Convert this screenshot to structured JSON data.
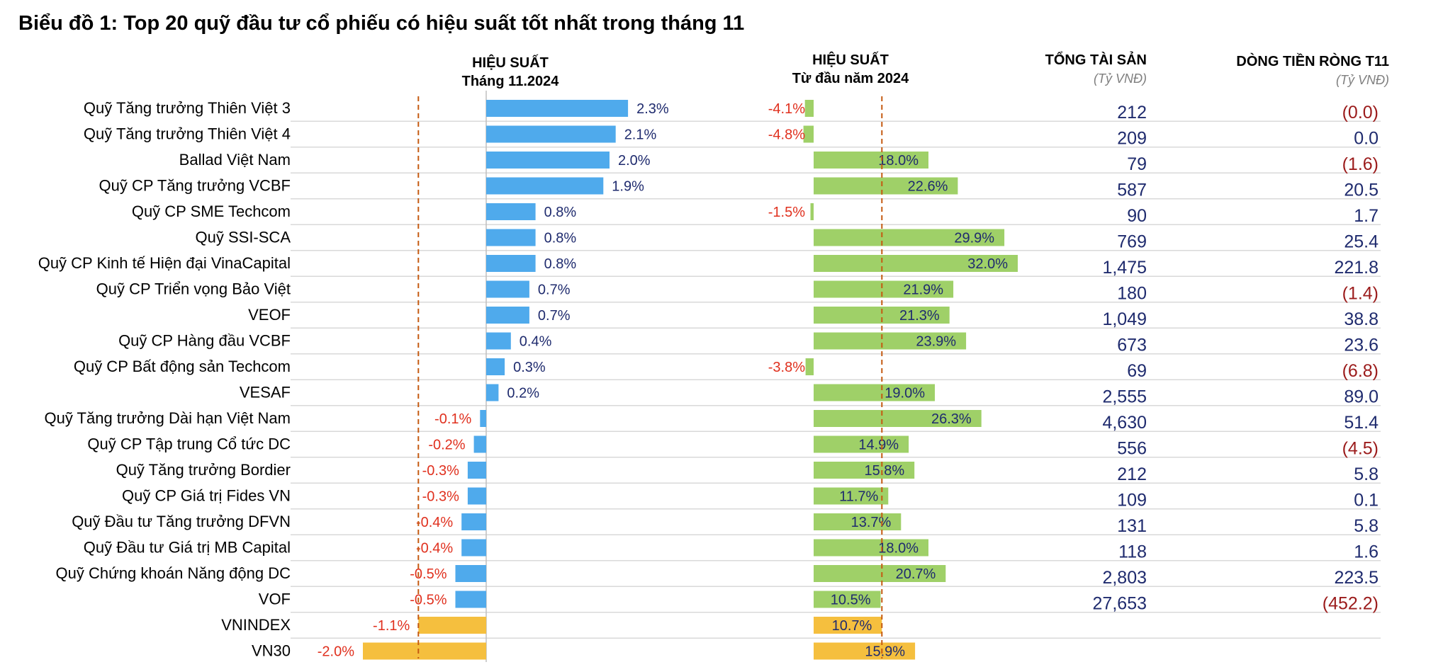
{
  "title": "Biểu đồ 1: Top 20 quỹ đầu tư cổ phiếu có hiệu suất tốt nhất trong tháng 11",
  "headers": {
    "perf_month": {
      "line1": "HIỆU SUẤT",
      "line2": "Tháng 11.2024"
    },
    "perf_ytd": {
      "line1": "HIỆU SUẤT",
      "line2": "Từ đầu năm 2024"
    },
    "total_assets": {
      "line1": "TỔNG TÀI SẢN",
      "unit": "(Tỷ VNĐ)"
    },
    "net_flow": {
      "line1": "DÒNG TIỀN RÒNG T11",
      "unit": "(Tỷ VNĐ)"
    }
  },
  "colors": {
    "fund_month": "#4faaec",
    "fund_ytd": "#9fd068",
    "index_bar": "#f5bf3e",
    "ref_line": "#c55a11",
    "positive_text": "#1f2b6e",
    "negative_label": "#e0301e",
    "negative_flow": "#9b1b1b",
    "separator": "#d9d9d9"
  },
  "chart_data": {
    "type": "bar",
    "categories": [
      "Quỹ Tăng trưởng Thiên Việt 3",
      "Quỹ Tăng trưởng Thiên Việt 4",
      "Ballad Việt Nam",
      "Quỹ CP Tăng trưởng VCBF",
      "Quỹ CP SME Techcom",
      "Quỹ SSI-SCA",
      "Quỹ CP Kinh tế Hiện đại VinaCapital",
      "Quỹ CP Triển vọng Bảo Việt",
      "VEOF",
      "Quỹ CP Hàng đầu VCBF",
      "Quỹ CP Bất động sản Techcom",
      "VESAF",
      "Quỹ Tăng trưởng Dài hạn Việt Nam",
      "Quỹ CP Tập trung Cổ tức DC",
      "Quỹ Tăng trưởng Bordier",
      "Quỹ CP Giá trị Fides VN",
      "Quỹ Đầu tư Tăng trưởng DFVN",
      "Quỹ Đầu tư Giá trị MB Capital",
      "Quỹ Chứng khoán Năng động DC",
      "VOF",
      "VNINDEX",
      "VN30"
    ],
    "is_index": [
      false,
      false,
      false,
      false,
      false,
      false,
      false,
      false,
      false,
      false,
      false,
      false,
      false,
      false,
      false,
      false,
      false,
      false,
      false,
      false,
      true,
      true
    ],
    "series": [
      {
        "name": "HIỆU SUẤT Tháng 11.2024",
        "values": [
          2.3,
          2.1,
          2.0,
          1.9,
          0.8,
          0.8,
          0.8,
          0.7,
          0.7,
          0.4,
          0.3,
          0.2,
          -0.1,
          -0.2,
          -0.3,
          -0.3,
          -0.4,
          -0.4,
          -0.5,
          -0.5,
          -1.1,
          -2.0
        ],
        "labels": [
          "2.3%",
          "2.1%",
          "2.0%",
          "1.9%",
          "0.8%",
          "0.8%",
          "0.8%",
          "0.7%",
          "0.7%",
          "0.4%",
          "0.3%",
          "0.2%",
          "-0.1%",
          "-0.2%",
          "-0.3%",
          "-0.3%",
          "-0.4%",
          "-0.4%",
          "-0.5%",
          "-0.5%",
          "-1.1%",
          "-2.0%"
        ],
        "reference_value": -1.1
      },
      {
        "name": "HIỆU SUẤT Từ đầu năm 2024",
        "values": [
          -4.1,
          -4.8,
          18.0,
          22.6,
          -1.5,
          29.9,
          32.0,
          21.9,
          21.3,
          23.9,
          -3.8,
          19.0,
          26.3,
          14.9,
          15.8,
          11.7,
          13.7,
          18.0,
          20.7,
          10.5,
          10.7,
          15.9
        ],
        "labels": [
          "-4.1%",
          "-4.8%",
          "18.0%",
          "22.6%",
          "-1.5%",
          "29.9%",
          "32.0%",
          "21.9%",
          "21.3%",
          "23.9%",
          "-3.8%",
          "19.0%",
          "26.3%",
          "14.9%",
          "15.8%",
          "11.7%",
          "13.7%",
          "18.0%",
          "20.7%",
          "10.5%",
          "10.7%",
          "15.9%"
        ],
        "reference_value": 10.7
      }
    ],
    "total_assets": [
      "212",
      "209",
      "79",
      "587",
      "90",
      "769",
      "1,475",
      "180",
      "1,049",
      "673",
      "69",
      "2,555",
      "4,630",
      "556",
      "212",
      "109",
      "131",
      "118",
      "2,803",
      "27,653",
      "",
      ""
    ],
    "net_flow": [
      "(0.0)",
      "0.0",
      "(1.6)",
      "20.5",
      "1.7",
      "25.4",
      "221.8",
      "(1.4)",
      "38.8",
      "23.6",
      "(6.8)",
      "89.0",
      "51.4",
      "(4.5)",
      "5.8",
      "0.1",
      "5.8",
      "1.6",
      "223.5",
      "(452.2)",
      "",
      ""
    ],
    "net_flow_negative": [
      true,
      false,
      true,
      false,
      false,
      false,
      false,
      true,
      false,
      false,
      true,
      false,
      false,
      true,
      false,
      false,
      false,
      false,
      false,
      true,
      false,
      false
    ]
  }
}
